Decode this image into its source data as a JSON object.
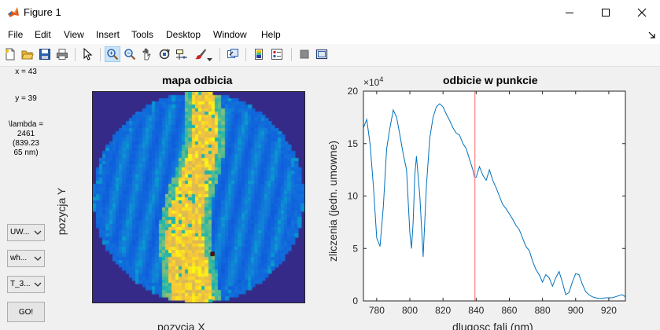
{
  "window": {
    "title": "Figure 1",
    "minimize_glyph": "—",
    "maximize_glyph": "☐",
    "close_glyph": "✕"
  },
  "menu": {
    "items": [
      "File",
      "Edit",
      "View",
      "Insert",
      "Tools",
      "Desktop",
      "Window",
      "Help"
    ]
  },
  "toolbar": {
    "icons": [
      "new-figure-icon",
      "open-file-icon",
      "save-icon",
      "print-icon",
      "edit-plot-icon",
      "zoom-in-icon",
      "zoom-out-icon",
      "pan-icon",
      "rotate-3d-icon",
      "data-cursor-icon",
      "brush-icon",
      "link-plot-icon",
      "insert-colorbar-icon",
      "insert-legend-icon",
      "hide-plot-tools-icon",
      "show-plot-tools-icon"
    ],
    "active": "zoom-in-icon"
  },
  "panel": {
    "x_readout": "x = 43",
    "y_readout": "y = 39",
    "lambda_lines": [
      "\\lambda =",
      "2461",
      "(839.23",
      "65 nm)"
    ],
    "popup1": "UW...",
    "popup2": "wh...",
    "popup3": "T_3...",
    "go_label": "GO!"
  },
  "map_axes": {
    "title": "mapa odbicia",
    "xlabel": "pozycja X",
    "ylabel": "pozycja Y",
    "selected_pixel": [
      43,
      39
    ],
    "grid_size": 64,
    "colormap": "parula"
  },
  "spectrum_axes": {
    "title": "odbicie w punkcie",
    "xlabel": "dlugosc fali (nm)",
    "ylabel": "zliczenia (jedn. umowne)",
    "exponent_label": "×10",
    "exponent_power": "4",
    "xlim": [
      772,
      930
    ],
    "ylim": [
      0,
      20
    ],
    "marker_x": 839.2365,
    "marker_color": "#ff8080",
    "line_color": "#0072bd"
  },
  "chart_data": {
    "type": "line",
    "title": "odbicie w punkcie",
    "xlabel": "dlugosc fali (nm)",
    "ylabel": "zliczenia (jedn. umowne)",
    "ylim": [
      0,
      20
    ],
    "xlim": [
      772,
      930
    ],
    "x_ticks": [
      780,
      800,
      820,
      840,
      860,
      880,
      900,
      920
    ],
    "y_ticks": [
      0,
      5,
      10,
      15,
      20
    ],
    "x": [
      772,
      774,
      776,
      778,
      780,
      782,
      784,
      786,
      788,
      790,
      792,
      794,
      796,
      798,
      800,
      801,
      802,
      803,
      804,
      806,
      808,
      810,
      812,
      814,
      816,
      818,
      820,
      822,
      824,
      826,
      828,
      830,
      832,
      834,
      836,
      838,
      839,
      840,
      842,
      844,
      846,
      848,
      850,
      852,
      854,
      856,
      858,
      860,
      862,
      864,
      866,
      868,
      870,
      872,
      874,
      876,
      878,
      880,
      882,
      884,
      886,
      888,
      890,
      892,
      894,
      896,
      898,
      900,
      902,
      904,
      906,
      908,
      910,
      912,
      914,
      916,
      918,
      920,
      922,
      924,
      926,
      928,
      930
    ],
    "series": [
      {
        "values": [
          16.5,
          17.3,
          15.0,
          11.0,
          6.0,
          5.2,
          9.0,
          14.5,
          16.5,
          18.2,
          17.5,
          15.8,
          14.0,
          12.5,
          6.5,
          5.0,
          7.5,
          12.0,
          13.8,
          10.0,
          4.2,
          11.0,
          15.5,
          17.5,
          18.5,
          18.8,
          18.5,
          17.8,
          17.2,
          16.5,
          16.0,
          15.8,
          15.0,
          14.5,
          13.5,
          12.5,
          11.8,
          11.8,
          12.8,
          12.0,
          11.5,
          12.5,
          11.5,
          10.8,
          10.0,
          9.2,
          8.8,
          8.3,
          7.8,
          7.2,
          6.8,
          6.0,
          5.2,
          4.8,
          3.8,
          3.0,
          2.5,
          1.8,
          2.5,
          2.2,
          1.4,
          2.2,
          2.8,
          1.8,
          0.6,
          0.8,
          1.8,
          2.6,
          2.5,
          1.6,
          0.9,
          0.6,
          0.4,
          0.3,
          0.25,
          0.25,
          0.3,
          0.3,
          0.3,
          0.4,
          0.5,
          0.6,
          0.4
        ]
      }
    ]
  }
}
